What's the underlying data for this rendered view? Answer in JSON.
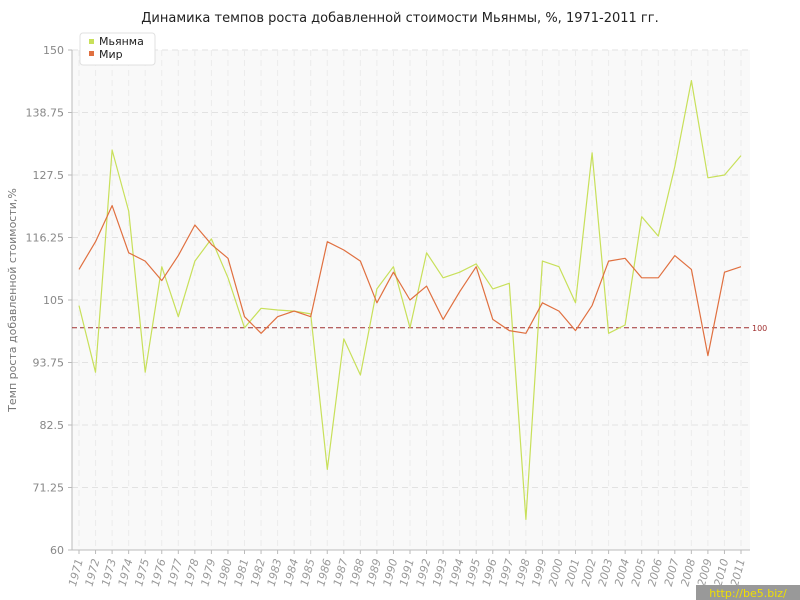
{
  "chart_data": {
    "type": "line",
    "title": "Динамика темпов роста добавленной стоимости Мьянмы, %, 1971-2011 гг.",
    "xlabel": "",
    "ylabel": "Темп роста добавленной стоимости,%",
    "ylim": [
      60,
      150
    ],
    "yticks": [
      "60",
      "71.25",
      "82.5",
      "93.75",
      "105",
      "116.25",
      "127.5",
      "138.75",
      "150"
    ],
    "categories": [
      "1971",
      "1972",
      "1973",
      "1974",
      "1975",
      "1976",
      "1977",
      "1978",
      "1979",
      "1980",
      "1981",
      "1982",
      "1983",
      "1984",
      "1985",
      "1986",
      "1987",
      "1988",
      "1989",
      "1990",
      "1991",
      "1992",
      "1993",
      "1994",
      "1995",
      "1996",
      "1997",
      "1998",
      "1999",
      "2000",
      "2001",
      "2002",
      "2003",
      "2004",
      "2005",
      "2006",
      "2007",
      "2008",
      "2009",
      "2010",
      "2011"
    ],
    "series": [
      {
        "name": "Мьянма",
        "color": "#c8e05a",
        "values": [
          104,
          92,
          132,
          121,
          92,
          111,
          102,
          112,
          116,
          109,
          100,
          103.5,
          103.2,
          103,
          102.5,
          74.5,
          98,
          91.5,
          107,
          111,
          100,
          113.5,
          109,
          110,
          111.5,
          107,
          108,
          65.5,
          112,
          111,
          104.5,
          131.5,
          99,
          100.5,
          120,
          116.5,
          129,
          144.5,
          127,
          127.5,
          131
        ]
      },
      {
        "name": "Мир",
        "color": "#e07040",
        "values": [
          110.5,
          115.5,
          122,
          113.5,
          112,
          108.5,
          113,
          118.5,
          115,
          112.5,
          102,
          99,
          102,
          103,
          102,
          115.5,
          114,
          112,
          104.5,
          110,
          105,
          107.5,
          101.5,
          106.5,
          111,
          101.5,
          99.5,
          99,
          104.5,
          103,
          99.5,
          104,
          112,
          112.5,
          109,
          109,
          113,
          110.5,
          95,
          110,
          111
        ]
      }
    ],
    "reference_line": {
      "value": 100,
      "label": "100",
      "color": "#a03030"
    },
    "grid": true,
    "legend": "top-left"
  },
  "watermark": "http://be5.biz/"
}
